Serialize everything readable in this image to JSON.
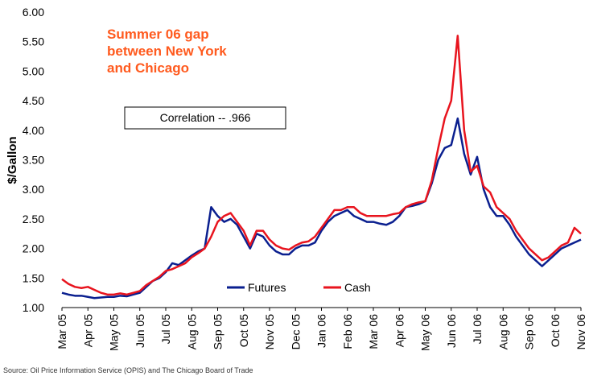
{
  "chart_data": {
    "type": "line",
    "y_label": "$/Gallon",
    "annotation": [
      "Summer 06 gap",
      "between New York",
      "and Chicago"
    ],
    "annotation_color": "#ff5a1e",
    "correlation_box": "Correlation -- .966",
    "source": "Source: Oil Price Information Service (OPIS) and The Chicago Board of Trade",
    "categories": [
      "Mar 05",
      null,
      null,
      null,
      "Apr 05",
      null,
      null,
      null,
      "May 05",
      null,
      null,
      null,
      "Jun 05",
      null,
      null,
      null,
      "Jul 05",
      null,
      null,
      null,
      "Aug 05",
      null,
      null,
      null,
      "Sep 05",
      null,
      null,
      null,
      "Oct 05",
      null,
      null,
      null,
      "Nov 05",
      null,
      null,
      null,
      "Dec 05",
      null,
      null,
      null,
      "Jan 06",
      null,
      null,
      null,
      "Feb 06",
      null,
      null,
      null,
      "Mar 06",
      null,
      null,
      null,
      "Apr 06",
      null,
      null,
      null,
      "May 06",
      null,
      null,
      null,
      "Jun 06",
      null,
      null,
      null,
      "Jul 06",
      null,
      null,
      null,
      "Aug 06",
      null,
      null,
      null,
      "Sep 06",
      null,
      null,
      null,
      "Oct 06",
      null,
      null,
      null,
      "Nov 06"
    ],
    "series": [
      {
        "name": "Futures",
        "color": "#0a1f8f",
        "values": [
          1.25,
          1.22,
          1.2,
          1.2,
          1.18,
          1.16,
          1.17,
          1.18,
          1.18,
          1.2,
          1.19,
          1.22,
          1.25,
          1.35,
          1.45,
          1.5,
          1.6,
          1.75,
          1.72,
          1.8,
          1.88,
          1.95,
          2.0,
          2.7,
          2.55,
          2.45,
          2.5,
          2.4,
          2.2,
          2.0,
          2.25,
          2.2,
          2.05,
          1.95,
          1.9,
          1.9,
          2.0,
          2.05,
          2.05,
          2.1,
          2.3,
          2.45,
          2.55,
          2.6,
          2.65,
          2.55,
          2.5,
          2.45,
          2.45,
          2.42,
          2.4,
          2.45,
          2.55,
          2.7,
          2.72,
          2.75,
          2.8,
          3.1,
          3.5,
          3.7,
          3.75,
          4.2,
          3.6,
          3.25,
          3.55,
          3.0,
          2.7,
          2.55,
          2.55,
          2.4,
          2.2,
          2.05,
          1.9,
          1.8,
          1.7,
          1.8,
          1.9,
          2.0,
          2.05,
          2.1,
          2.15
        ]
      },
      {
        "name": "Cash",
        "color": "#e8141e",
        "values": [
          1.48,
          1.4,
          1.35,
          1.33,
          1.35,
          1.3,
          1.25,
          1.22,
          1.22,
          1.24,
          1.22,
          1.25,
          1.28,
          1.38,
          1.45,
          1.52,
          1.62,
          1.65,
          1.7,
          1.75,
          1.85,
          1.92,
          2.0,
          2.2,
          2.45,
          2.55,
          2.6,
          2.45,
          2.3,
          2.05,
          2.3,
          2.3,
          2.15,
          2.05,
          2.0,
          1.98,
          2.05,
          2.1,
          2.12,
          2.2,
          2.35,
          2.5,
          2.65,
          2.65,
          2.7,
          2.7,
          2.6,
          2.55,
          2.55,
          2.55,
          2.55,
          2.58,
          2.6,
          2.7,
          2.75,
          2.78,
          2.8,
          3.15,
          3.7,
          4.2,
          4.5,
          5.6,
          4.0,
          3.3,
          3.4,
          3.05,
          2.95,
          2.7,
          2.6,
          2.5,
          2.3,
          2.15,
          2.0,
          1.9,
          1.8,
          1.85,
          1.95,
          2.05,
          2.1,
          2.35,
          2.25
        ]
      }
    ],
    "ylim": [
      1,
      6
    ],
    "yticks": [
      {
        "value": 1,
        "label": "1.00"
      },
      {
        "value": 1.5,
        "label": "1.50"
      },
      {
        "value": 2,
        "label": "2.00"
      },
      {
        "value": 2.5,
        "label": "2.50"
      },
      {
        "value": 3,
        "label": "3.00"
      },
      {
        "value": 3.5,
        "label": "3.50"
      },
      {
        "value": 4,
        "label": "4.00"
      },
      {
        "value": 4.5,
        "label": "4.50"
      },
      {
        "value": 5,
        "label": "5.00"
      },
      {
        "value": 5.5,
        "label": "5.50"
      },
      {
        "value": 6,
        "label": "6.00"
      }
    ],
    "grid": false,
    "legend": "bottom"
  }
}
